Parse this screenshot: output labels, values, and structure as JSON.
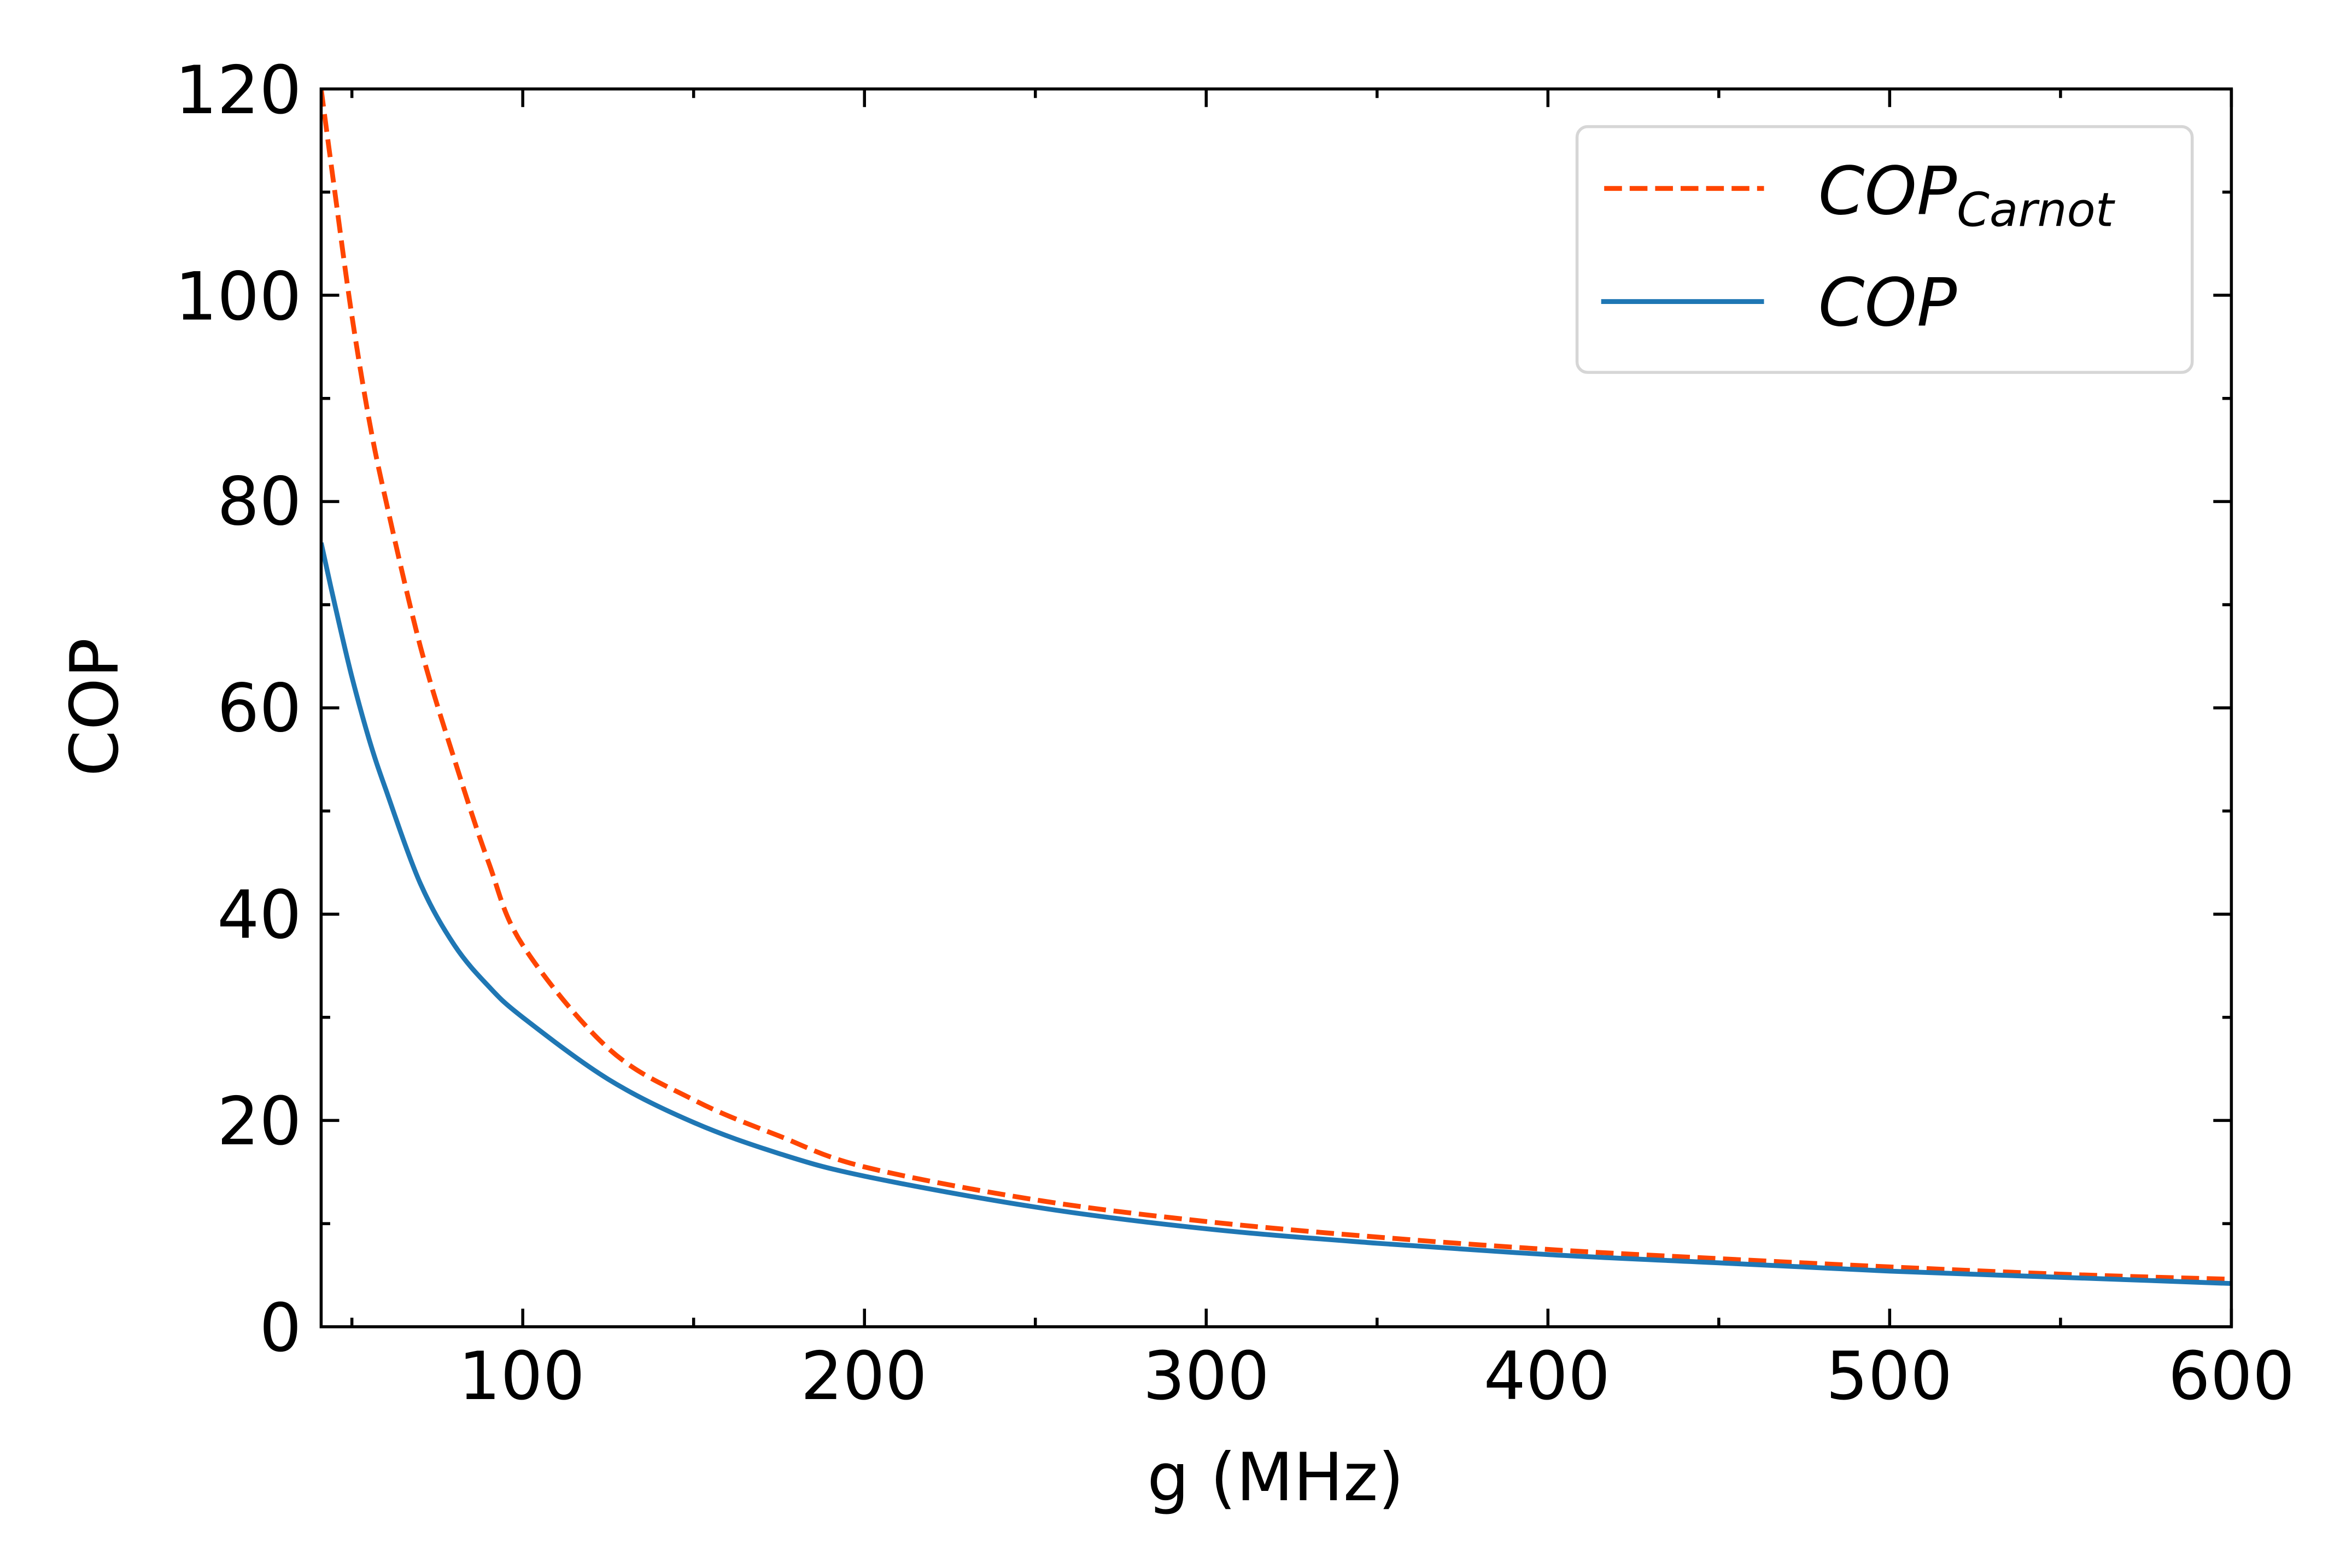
{
  "chart_data": {
    "type": "line",
    "title": "",
    "xlabel": "g (MHz)",
    "ylabel": "COP",
    "xlim": [
      41,
      600
    ],
    "ylim": [
      0,
      120
    ],
    "grid": false,
    "x_ticks": [
      100,
      200,
      300,
      400,
      500,
      600
    ],
    "x_minor_ticks": [
      50,
      150,
      250,
      350,
      450,
      550
    ],
    "y_ticks": [
      0,
      20,
      40,
      60,
      80,
      100,
      120
    ],
    "y_minor_ticks": [
      10,
      30,
      50,
      70,
      90,
      110
    ],
    "tick_direction": "in",
    "legend_position": "upper right",
    "series": [
      {
        "name": "COP_Carnot",
        "label_main": "COP",
        "label_sub": "Carnot",
        "color": "#ff4500",
        "style": "dashed",
        "x": [
          41,
          45,
          50,
          55,
          60,
          70,
          80,
          90,
          100,
          125,
          150,
          175,
          200,
          250,
          300,
          350,
          400,
          450,
          500,
          550,
          600
        ],
        "y": [
          120,
          110,
          98,
          88,
          80,
          66,
          55,
          45,
          37,
          27,
          22,
          18.5,
          15.5,
          12.3,
          10.2,
          8.7,
          7.5,
          6.6,
          5.8,
          5.1,
          4.6
        ]
      },
      {
        "name": "COP",
        "label_main": "COP",
        "label_sub": "",
        "color": "#1f77b4",
        "style": "solid",
        "x": [
          41,
          45,
          50,
          55,
          60,
          70,
          80,
          90,
          100,
          125,
          150,
          175,
          200,
          250,
          300,
          350,
          400,
          450,
          500,
          550,
          600
        ],
        "y": [
          76,
          70,
          63,
          57,
          52,
          43,
          37,
          33,
          30,
          24,
          19.8,
          16.8,
          14.6,
          11.6,
          9.5,
          8.1,
          7.0,
          6.2,
          5.4,
          4.8,
          4.2
        ]
      }
    ]
  },
  "axes": {
    "x_tick_labels": [
      "100",
      "200",
      "300",
      "400",
      "500",
      "600"
    ],
    "y_tick_labels": [
      "0",
      "20",
      "40",
      "60",
      "80",
      "100",
      "120"
    ]
  },
  "legend": {
    "items": [
      {
        "main": "COP",
        "sub": "Carnot"
      },
      {
        "main": "COP",
        "sub": ""
      }
    ]
  }
}
